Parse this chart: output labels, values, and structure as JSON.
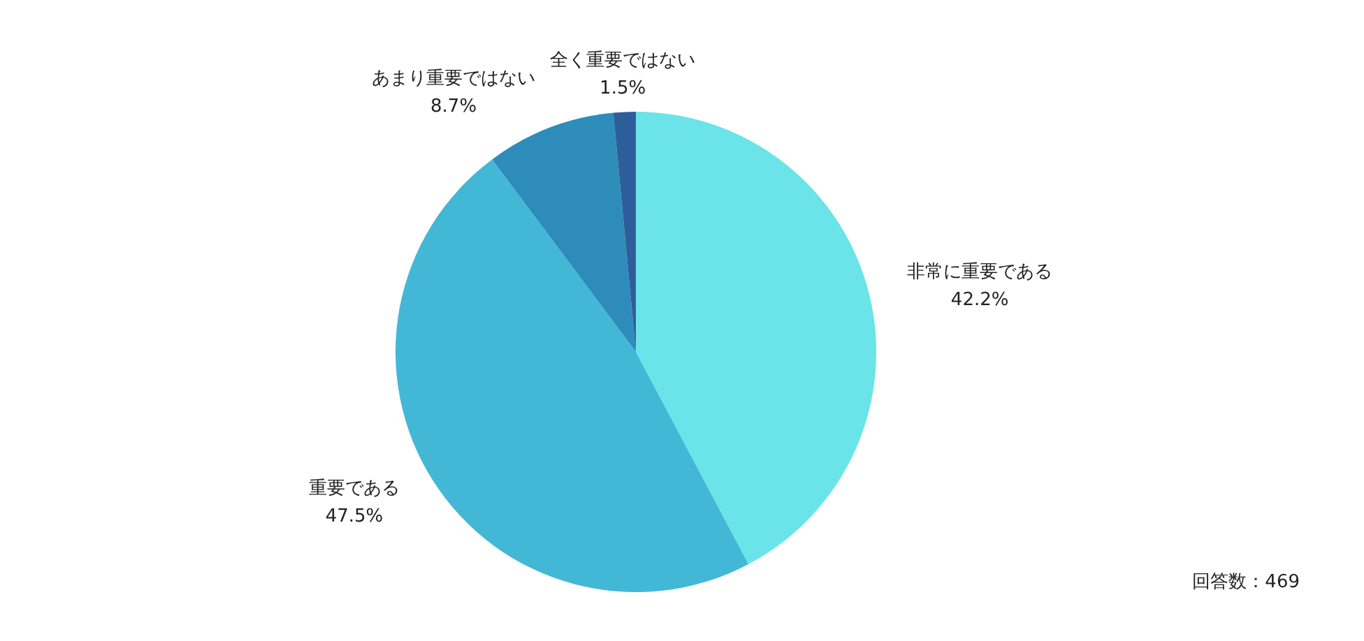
{
  "chart_data": {
    "type": "pie",
    "categories": [
      "非常に重要である",
      "重要である",
      "あまり重要ではない",
      "全く重要ではない"
    ],
    "values": [
      42.2,
      47.5,
      8.7,
      1.5
    ],
    "colors": [
      "#6ae4e8",
      "#43b8d6",
      "#2d8cba",
      "#2e5e9a"
    ],
    "value_labels": [
      "42.2%",
      "47.5%",
      "8.7%",
      "1.5%"
    ],
    "annotations": [
      "回答数：469"
    ]
  }
}
